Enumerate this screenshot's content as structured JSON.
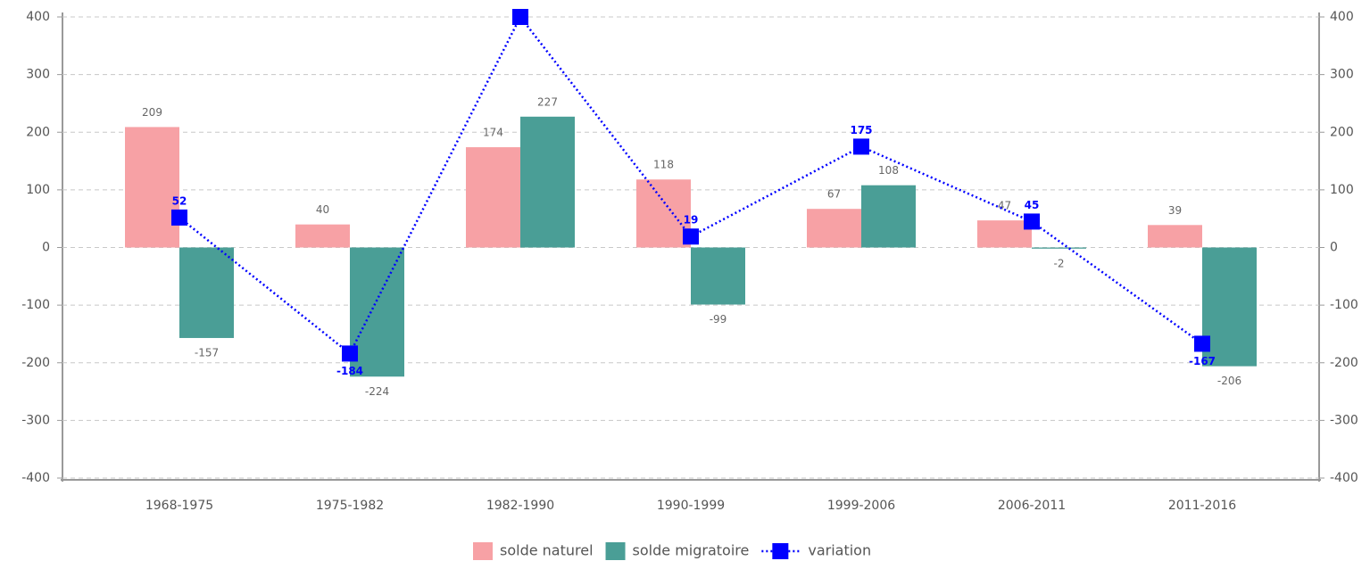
{
  "chart_data": {
    "type": "bar",
    "categories": [
      "1968-1975",
      "1975-1982",
      "1982-1990",
      "1990-1999",
      "1999-2006",
      "2006-2011",
      "2011-2016"
    ],
    "series": [
      {
        "name": "solde naturel",
        "color": "#f7a1a5",
        "values": [
          209,
          40,
          174,
          118,
          67,
          47,
          39
        ]
      },
      {
        "name": "solde migratoire",
        "color": "#4a9e96",
        "values": [
          -157,
          -224,
          227,
          -99,
          108,
          -2,
          -206
        ]
      },
      {
        "name": "variation",
        "type": "line",
        "axis": "y2",
        "color": "#0000ff",
        "values": [
          52,
          -184,
          400,
          19,
          175,
          45,
          -167
        ]
      }
    ],
    "ylim": [
      -400,
      400
    ],
    "yticks": [
      -400,
      -300,
      -200,
      -100,
      0,
      100,
      200,
      300,
      400
    ],
    "y2lim": [
      -400,
      400
    ],
    "y2ticks": [
      -400,
      -300,
      -200,
      -100,
      0,
      100,
      200,
      300,
      400
    ],
    "grid": true,
    "legend": "bottom"
  }
}
